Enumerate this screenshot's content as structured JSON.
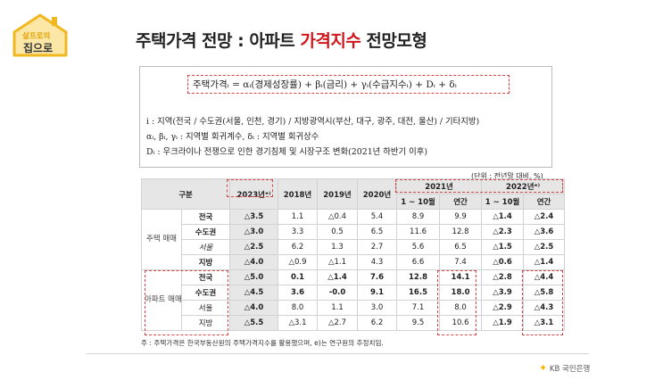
{
  "logo": {
    "line1": "살프로의",
    "line2": "집으로"
  },
  "title": {
    "prefix": "주택가격 전망 : 아파트 ",
    "highlight": "가격지수",
    "suffix": " 전망모형"
  },
  "equation": {
    "main": "주택가격ᵢ = αᵢ(경제성장률) + βᵢ(금리) + γᵢ(수급지수ᵢ) + Dᵢ + δᵢ",
    "line1": "i : 지역(전국 / 수도권(서울, 인천, 경기) / 지방광역시(부산, 대구, 광주, 대전, 울산) / 기타지방)",
    "line2": "αᵢ, βᵢ, γᵢ : 지역별 회귀계수,   δᵢ : 지역별 회귀상수",
    "line3": "Dᵢ : 우크라이나 전쟁으로 인한 경기침체 및 시장구조 변화(2021년 하반기 이후)"
  },
  "unit": "(단위 : 전년말 대비, %)",
  "table": {
    "h_category": "구분",
    "h_2023": "2023년ᵉ⁾",
    "h_2018": "2018년",
    "h_2019": "2019년",
    "h_2020": "2020년",
    "h_2021": "2021년",
    "h_2022": "2022년ᵉ⁾",
    "h_jan_oct_1": "1 ~ 10월",
    "h_annual_1": "연간",
    "h_jan_oct_2": "1 ~ 10월",
    "h_annual_2": "연간",
    "group_house": "주택 매매",
    "group_apt": "아파트 매매",
    "rows": [
      {
        "label": "전국",
        "v": [
          "△3.5",
          "1.1",
          "△0.4",
          "5.4",
          "8.9",
          "9.9",
          "△1.4",
          "△2.4"
        ]
      },
      {
        "label": "수도권",
        "v": [
          "△3.0",
          "3.3",
          "0.5",
          "6.5",
          "11.6",
          "12.8",
          "△2.3",
          "△3.6"
        ]
      },
      {
        "label": "서울",
        "v": [
          "△2.5",
          "6.2",
          "1.3",
          "2.7",
          "5.6",
          "6.5",
          "△1.5",
          "△2.5"
        ]
      },
      {
        "label": "지방",
        "v": [
          "△4.0",
          "△0.9",
          "△1.1",
          "4.3",
          "6.6",
          "7.4",
          "△0.6",
          "△1.4"
        ]
      },
      {
        "label": "전국",
        "v": [
          "△5.0",
          "0.1",
          "△1.4",
          "7.6",
          "12.8",
          "14.1",
          "△2.8",
          "△4.4"
        ]
      },
      {
        "label": "수도권",
        "v": [
          "△4.5",
          "3.6",
          "-0.0",
          "9.1",
          "16.5",
          "18.0",
          "△3.9",
          "△5.8"
        ]
      },
      {
        "label": "서울",
        "v": [
          "△4.0",
          "8.0",
          "1.1",
          "3.0",
          "7.1",
          "8.0",
          "△2.9",
          "△4.3"
        ]
      },
      {
        "label": "지방",
        "v": [
          "△5.5",
          "△3.1",
          "△2.7",
          "6.2",
          "9.5",
          "10.6",
          "△1.9",
          "△3.1"
        ]
      }
    ]
  },
  "note": "주 : 주택가격은 한국부동산원의 주택가격지수를 활용했으며, e)는 연구원의 추정치임.",
  "footer": {
    "brand": "KB 국민은행"
  }
}
